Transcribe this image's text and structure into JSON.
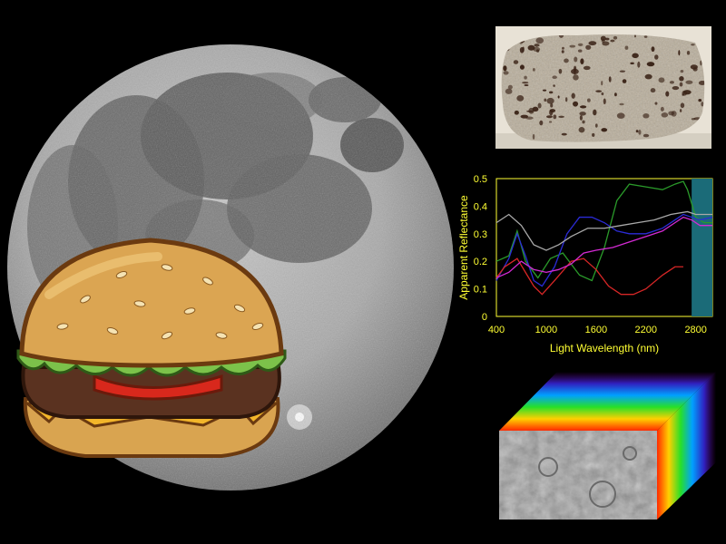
{
  "scene": {
    "objects": [
      "moon-illustration",
      "hamburger-illustration",
      "vesicular-rock-sample",
      "reflectance-spectrum-chart",
      "hyperspectral-data-cube"
    ]
  },
  "colors": {
    "background": "#000000",
    "chart_text": "#ffff33",
    "band_highlight": "#1b6b78"
  },
  "chart_data": {
    "type": "line",
    "title": "",
    "xlabel": "Light Wavelength (nm)",
    "ylabel": "Apparent Reflectance",
    "xlim": [
      400,
      3000
    ],
    "ylim": [
      0,
      0.5
    ],
    "xticks": [
      400,
      1000,
      1600,
      2200,
      2800
    ],
    "yticks": [
      0,
      0.1,
      0.2,
      0.3,
      0.4,
      0.5
    ],
    "highlight_band": [
      2750,
      3000
    ],
    "series": [
      {
        "color": "#2a9a2a",
        "x": [
          400,
          550,
          650,
          750,
          900,
          1050,
          1200,
          1400,
          1550,
          1700,
          1850,
          2000,
          2200,
          2400,
          2550,
          2650,
          2700,
          2800,
          2900,
          3000
        ],
        "y": [
          0.2,
          0.22,
          0.31,
          0.2,
          0.14,
          0.21,
          0.23,
          0.15,
          0.13,
          0.25,
          0.42,
          0.48,
          0.47,
          0.46,
          0.48,
          0.49,
          0.46,
          0.36,
          0.34,
          0.34
        ]
      },
      {
        "color": "#2b2bd6",
        "x": [
          400,
          550,
          650,
          750,
          850,
          950,
          1100,
          1250,
          1400,
          1550,
          1700,
          1850,
          2000,
          2200,
          2400,
          2550,
          2650,
          2750,
          2850,
          3000
        ],
        "y": [
          0.13,
          0.21,
          0.3,
          0.22,
          0.13,
          0.11,
          0.18,
          0.3,
          0.36,
          0.36,
          0.34,
          0.31,
          0.3,
          0.3,
          0.32,
          0.35,
          0.37,
          0.36,
          0.35,
          0.36
        ]
      },
      {
        "color": "#d62626",
        "x": [
          400,
          500,
          650,
          750,
          850,
          950,
          1100,
          1300,
          1450,
          1600,
          1750,
          1900,
          2050,
          2200,
          2400,
          2550,
          2650
        ],
        "y": [
          0.14,
          0.18,
          0.21,
          0.16,
          0.11,
          0.08,
          0.13,
          0.2,
          0.21,
          0.17,
          0.11,
          0.08,
          0.08,
          0.1,
          0.15,
          0.18,
          0.18
        ]
      },
      {
        "color": "#d42ad4",
        "x": [
          400,
          550,
          700,
          850,
          1000,
          1150,
          1300,
          1450,
          1600,
          1800,
          2000,
          2200,
          2400,
          2550,
          2650,
          2750,
          2850,
          3000
        ],
        "y": [
          0.14,
          0.16,
          0.2,
          0.17,
          0.16,
          0.17,
          0.19,
          0.23,
          0.24,
          0.25,
          0.27,
          0.29,
          0.31,
          0.34,
          0.36,
          0.35,
          0.33,
          0.33
        ]
      },
      {
        "color": "#a9a9a9",
        "x": [
          400,
          550,
          700,
          850,
          1000,
          1150,
          1300,
          1500,
          1700,
          1900,
          2100,
          2300,
          2500,
          2700,
          2800,
          3000
        ],
        "y": [
          0.34,
          0.37,
          0.33,
          0.26,
          0.24,
          0.26,
          0.29,
          0.32,
          0.32,
          0.33,
          0.34,
          0.35,
          0.37,
          0.38,
          0.37,
          0.37
        ]
      }
    ]
  }
}
